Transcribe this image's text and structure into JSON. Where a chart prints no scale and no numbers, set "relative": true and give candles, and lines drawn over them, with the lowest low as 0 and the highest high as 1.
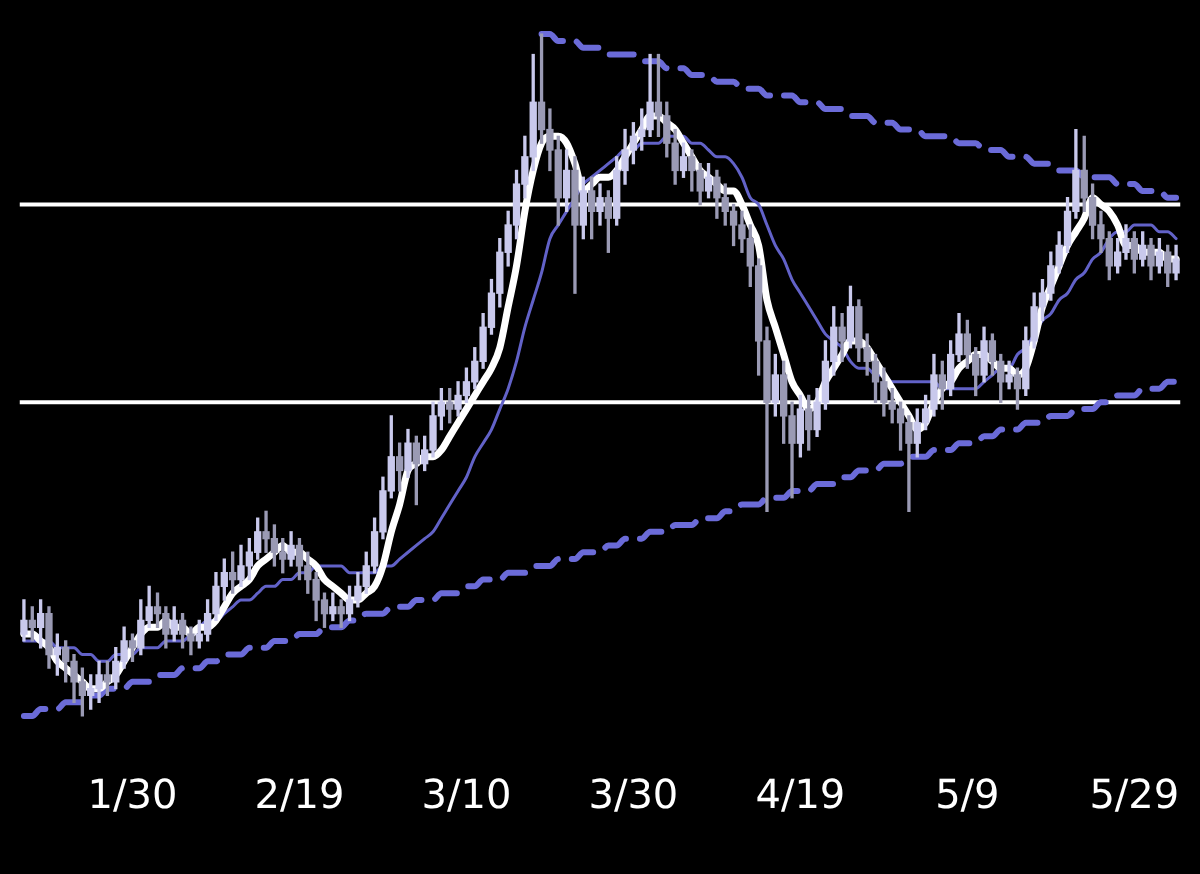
{
  "chart_data": {
    "type": "candlestick",
    "relative": true,
    "colors": [
      "#c9c9ec",
      "#9a9ab4",
      "#c9c9ec",
      "#9a9ab4",
      "#c9c9ec",
      "#9a9ab4",
      "#9a9ab4",
      "#9a9ab4",
      "#c9c9ec",
      "#c9c9ec",
      "#9a9ab4",
      "#c9c9ec",
      "#c9c9ec",
      "#9a9ab4",
      "#c9c9ec",
      "#c9c9ec",
      "#9a9ab4",
      "#9a9ab4",
      "#c9c9ec",
      "#9a9ab4",
      "#9a9ab4",
      "#c9c9ec",
      "#c9c9ec",
      "#c9c9ec",
      "#c9c9ec",
      "#9a9ab4",
      "#c9c9ec",
      "#c9c9ec",
      "#c9c9ec",
      "#9a9ab4",
      "#9a9ab4",
      "#9a9ab4",
      "#c9c9ec",
      "#9a9ab4",
      "#9a9ab4",
      "#9a9ab4",
      "#9a9ab4",
      "#c9c9ec",
      "#9a9ab4",
      "#c9c9ec",
      "#c9c9ec",
      "#c9c9ec",
      "#c9c9ec",
      "#c9c9ec",
      "#c9c9ec",
      "#9a9ab4",
      "#c9c9ec",
      "#9a9ab4",
      "#c9c9ec",
      "#c9c9ec",
      "#c9c9ec",
      "#9a9ab4",
      "#c9c9ec",
      "#c9c9ec",
      "#c9c9ec",
      "#c9c9ec",
      "#c9c9ec",
      "#c9c9ec",
      "#c9c9ec",
      "#c9c9ec",
      "#c9c9ec",
      "#c9c9ec",
      "#9a9ab4",
      "#9a9ab4",
      "#9a9ab4",
      "#c9c9ec",
      "#9a9ab4",
      "#c9c9ec",
      "#9a9ab4",
      "#c9c9ec",
      "#9a9ab4",
      "#c9c9ec",
      "#c9c9ec",
      "#c9c9ec",
      "#c9c9ec",
      "#c9c9ec",
      "#9a9ab4",
      "#9a9ab4",
      "#9a9ab4",
      "#c9c9ec",
      "#9a9ab4",
      "#9a9ab4",
      "#c9c9ec",
      "#9a9ab4",
      "#9a9ab4",
      "#9a9ab4",
      "#9a9ab4",
      "#9a9ab4",
      "#9a9ab4",
      "#9a9ab4",
      "#c9c9ec",
      "#9a9ab4",
      "#9a9ab4",
      "#c9c9ec",
      "#9a9ab4",
      "#c9c9ec",
      "#c9c9ec",
      "#c9c9ec",
      "#9a9ab4",
      "#c9c9ec",
      "#9a9ab4",
      "#9a9ab4",
      "#9a9ab4",
      "#9a9ab4",
      "#9a9ab4",
      "#9a9ab4",
      "#9a9ab4",
      "#c9c9ec",
      "#c9c9ec",
      "#c9c9ec",
      "#9a9ab4",
      "#c9c9ec",
      "#c9c9ec",
      "#9a9ab4",
      "#9a9ab4",
      "#c9c9ec",
      "#9a9ab4",
      "#9a9ab4",
      "#c9c9ec",
      "#9a9ab4",
      "#c9c9ec",
      "#c9c9ec",
      "#c9c9ec",
      "#c9c9ec",
      "#c9c9ec",
      "#c9c9ec",
      "#c9c9ec",
      "#9a9ab4",
      "#9a9ab4",
      "#9a9ab4",
      "#9a9ab4",
      "#c9c9ec",
      "#c9c9ec",
      "#9a9ab4",
      "#c9c9ec",
      "#9a9ab4",
      "#c9c9ec",
      "#9a9ab4",
      "#c9c9ec"
    ],
    "categories": [
      null,
      null,
      null,
      null,
      null,
      null,
      null,
      null,
      null,
      null,
      null,
      null,
      null,
      "1/30",
      null,
      null,
      null,
      null,
      null,
      null,
      null,
      null,
      null,
      null,
      null,
      null,
      null,
      null,
      null,
      null,
      null,
      null,
      null,
      "2/19",
      null,
      null,
      null,
      null,
      null,
      null,
      null,
      null,
      null,
      null,
      null,
      null,
      null,
      null,
      null,
      null,
      null,
      null,
      null,
      "3/10",
      null,
      null,
      null,
      null,
      null,
      null,
      null,
      null,
      null,
      null,
      null,
      null,
      null,
      null,
      null,
      null,
      null,
      null,
      null,
      "3/30",
      null,
      null,
      null,
      null,
      null,
      null,
      null,
      null,
      null,
      null,
      null,
      null,
      null,
      null,
      null,
      null,
      null,
      null,
      null,
      "4/19",
      null,
      null,
      null,
      null,
      null,
      null,
      null,
      null,
      null,
      null,
      null,
      null,
      null,
      null,
      null,
      null,
      null,
      null,
      null,
      "5/9",
      null,
      null,
      null,
      null,
      null,
      null,
      null,
      null,
      null,
      null,
      null,
      null,
      null,
      null,
      null,
      null,
      null,
      null,
      null,
      "5/29",
      null,
      null,
      null,
      null,
      null
    ],
    "ohlc": [
      [
        0.12,
        0.17,
        0.11,
        0.14
      ],
      [
        0.14,
        0.16,
        0.11,
        0.13
      ],
      [
        0.13,
        0.17,
        0.1,
        0.15
      ],
      [
        0.15,
        0.16,
        0.07,
        0.09
      ],
      [
        0.09,
        0.12,
        0.06,
        0.1
      ],
      [
        0.1,
        0.11,
        0.05,
        0.08
      ],
      [
        0.08,
        0.09,
        0.02,
        0.05
      ],
      [
        0.05,
        0.07,
        0.0,
        0.03
      ],
      [
        0.03,
        0.06,
        0.01,
        0.04
      ],
      [
        0.04,
        0.08,
        0.02,
        0.06
      ],
      [
        0.06,
        0.08,
        0.03,
        0.05
      ],
      [
        0.05,
        0.1,
        0.04,
        0.08
      ],
      [
        0.08,
        0.13,
        0.07,
        0.11
      ],
      [
        0.11,
        0.12,
        0.08,
        0.1
      ],
      [
        0.1,
        0.17,
        0.09,
        0.14
      ],
      [
        0.14,
        0.19,
        0.13,
        0.16
      ],
      [
        0.16,
        0.18,
        0.13,
        0.15
      ],
      [
        0.15,
        0.16,
        0.1,
        0.12
      ],
      [
        0.12,
        0.16,
        0.11,
        0.14
      ],
      [
        0.14,
        0.15,
        0.1,
        0.12
      ],
      [
        0.12,
        0.13,
        0.09,
        0.11
      ],
      [
        0.11,
        0.14,
        0.1,
        0.12
      ],
      [
        0.12,
        0.17,
        0.11,
        0.15
      ],
      [
        0.15,
        0.21,
        0.14,
        0.19
      ],
      [
        0.19,
        0.23,
        0.17,
        0.21
      ],
      [
        0.21,
        0.24,
        0.18,
        0.2
      ],
      [
        0.2,
        0.25,
        0.19,
        0.22
      ],
      [
        0.22,
        0.26,
        0.2,
        0.24
      ],
      [
        0.24,
        0.29,
        0.23,
        0.27
      ],
      [
        0.27,
        0.3,
        0.24,
        0.26
      ],
      [
        0.26,
        0.28,
        0.22,
        0.24
      ],
      [
        0.24,
        0.26,
        0.21,
        0.23
      ],
      [
        0.23,
        0.27,
        0.22,
        0.25
      ],
      [
        0.25,
        0.26,
        0.2,
        0.22
      ],
      [
        0.22,
        0.24,
        0.18,
        0.2
      ],
      [
        0.2,
        0.21,
        0.14,
        0.17
      ],
      [
        0.17,
        0.18,
        0.13,
        0.15
      ],
      [
        0.15,
        0.18,
        0.14,
        0.16
      ],
      [
        0.16,
        0.17,
        0.13,
        0.15
      ],
      [
        0.15,
        0.19,
        0.14,
        0.17
      ],
      [
        0.17,
        0.21,
        0.16,
        0.19
      ],
      [
        0.19,
        0.24,
        0.18,
        0.22
      ],
      [
        0.22,
        0.29,
        0.21,
        0.27
      ],
      [
        0.27,
        0.35,
        0.26,
        0.33
      ],
      [
        0.33,
        0.44,
        0.32,
        0.38
      ],
      [
        0.38,
        0.4,
        0.33,
        0.36
      ],
      [
        0.36,
        0.42,
        0.35,
        0.4
      ],
      [
        0.4,
        0.41,
        0.31,
        0.37
      ],
      [
        0.37,
        0.41,
        0.36,
        0.39
      ],
      [
        0.39,
        0.46,
        0.38,
        0.44
      ],
      [
        0.44,
        0.48,
        0.42,
        0.46
      ],
      [
        0.46,
        0.48,
        0.43,
        0.45
      ],
      [
        0.45,
        0.49,
        0.44,
        0.47
      ],
      [
        0.47,
        0.51,
        0.46,
        0.49
      ],
      [
        0.49,
        0.54,
        0.48,
        0.52
      ],
      [
        0.52,
        0.59,
        0.51,
        0.57
      ],
      [
        0.57,
        0.64,
        0.56,
        0.62
      ],
      [
        0.62,
        0.7,
        0.6,
        0.68
      ],
      [
        0.68,
        0.74,
        0.66,
        0.72
      ],
      [
        0.72,
        0.8,
        0.7,
        0.78
      ],
      [
        0.78,
        0.85,
        0.76,
        0.82
      ],
      [
        0.82,
        0.97,
        0.8,
        0.9
      ],
      [
        0.9,
        1.0,
        0.84,
        0.86
      ],
      [
        0.86,
        0.89,
        0.8,
        0.83
      ],
      [
        0.83,
        0.85,
        0.72,
        0.76
      ],
      [
        0.76,
        0.83,
        0.74,
        0.8
      ],
      [
        0.8,
        0.82,
        0.62,
        0.72
      ],
      [
        0.72,
        0.79,
        0.7,
        0.77
      ],
      [
        0.77,
        0.79,
        0.7,
        0.74
      ],
      [
        0.74,
        0.78,
        0.72,
        0.76
      ],
      [
        0.76,
        0.77,
        0.68,
        0.73
      ],
      [
        0.73,
        0.82,
        0.72,
        0.8
      ],
      [
        0.8,
        0.86,
        0.78,
        0.83
      ],
      [
        0.83,
        0.87,
        0.81,
        0.85
      ],
      [
        0.85,
        0.89,
        0.83,
        0.86
      ],
      [
        0.86,
        0.97,
        0.85,
        0.9
      ],
      [
        0.9,
        0.97,
        0.85,
        0.88
      ],
      [
        0.88,
        0.9,
        0.82,
        0.84
      ],
      [
        0.84,
        0.86,
        0.78,
        0.8
      ],
      [
        0.8,
        0.84,
        0.79,
        0.82
      ],
      [
        0.82,
        0.83,
        0.77,
        0.8
      ],
      [
        0.8,
        0.81,
        0.75,
        0.77
      ],
      [
        0.77,
        0.81,
        0.76,
        0.79
      ],
      [
        0.79,
        0.8,
        0.73,
        0.76
      ],
      [
        0.76,
        0.78,
        0.72,
        0.74
      ],
      [
        0.74,
        0.75,
        0.69,
        0.72
      ],
      [
        0.72,
        0.74,
        0.68,
        0.7
      ],
      [
        0.7,
        0.72,
        0.63,
        0.66
      ],
      [
        0.66,
        0.67,
        0.5,
        0.55
      ],
      [
        0.55,
        0.57,
        0.3,
        0.46
      ],
      [
        0.46,
        0.53,
        0.44,
        0.5
      ],
      [
        0.5,
        0.52,
        0.4,
        0.44
      ],
      [
        0.44,
        0.46,
        0.32,
        0.4
      ],
      [
        0.4,
        0.47,
        0.38,
        0.45
      ],
      [
        0.45,
        0.47,
        0.39,
        0.42
      ],
      [
        0.42,
        0.48,
        0.41,
        0.46
      ],
      [
        0.46,
        0.55,
        0.45,
        0.52
      ],
      [
        0.52,
        0.6,
        0.5,
        0.57
      ],
      [
        0.57,
        0.59,
        0.52,
        0.55
      ],
      [
        0.55,
        0.63,
        0.54,
        0.6
      ],
      [
        0.6,
        0.61,
        0.52,
        0.54
      ],
      [
        0.54,
        0.56,
        0.5,
        0.52
      ],
      [
        0.52,
        0.53,
        0.46,
        0.49
      ],
      [
        0.49,
        0.51,
        0.44,
        0.46
      ],
      [
        0.46,
        0.48,
        0.43,
        0.45
      ],
      [
        0.45,
        0.46,
        0.39,
        0.43
      ],
      [
        0.43,
        0.44,
        0.3,
        0.4
      ],
      [
        0.4,
        0.45,
        0.38,
        0.43
      ],
      [
        0.43,
        0.47,
        0.42,
        0.45
      ],
      [
        0.45,
        0.53,
        0.44,
        0.5
      ],
      [
        0.5,
        0.52,
        0.45,
        0.48
      ],
      [
        0.48,
        0.55,
        0.47,
        0.53
      ],
      [
        0.53,
        0.59,
        0.52,
        0.56
      ],
      [
        0.56,
        0.58,
        0.51,
        0.53
      ],
      [
        0.53,
        0.54,
        0.47,
        0.5
      ],
      [
        0.5,
        0.57,
        0.49,
        0.55
      ],
      [
        0.55,
        0.56,
        0.5,
        0.52
      ],
      [
        0.52,
        0.53,
        0.46,
        0.49
      ],
      [
        0.49,
        0.52,
        0.48,
        0.5
      ],
      [
        0.5,
        0.51,
        0.45,
        0.48
      ],
      [
        0.48,
        0.57,
        0.47,
        0.55
      ],
      [
        0.55,
        0.62,
        0.54,
        0.6
      ],
      [
        0.6,
        0.64,
        0.58,
        0.62
      ],
      [
        0.62,
        0.68,
        0.61,
        0.66
      ],
      [
        0.66,
        0.71,
        0.65,
        0.69
      ],
      [
        0.69,
        0.76,
        0.68,
        0.74
      ],
      [
        0.74,
        0.86,
        0.73,
        0.8
      ],
      [
        0.8,
        0.85,
        0.74,
        0.76
      ],
      [
        0.76,
        0.78,
        0.7,
        0.72
      ],
      [
        0.72,
        0.74,
        0.68,
        0.7
      ],
      [
        0.7,
        0.71,
        0.64,
        0.66
      ],
      [
        0.66,
        0.7,
        0.65,
        0.68
      ],
      [
        0.68,
        0.72,
        0.67,
        0.7
      ],
      [
        0.7,
        0.71,
        0.65,
        0.67
      ],
      [
        0.67,
        0.71,
        0.66,
        0.69
      ],
      [
        0.69,
        0.7,
        0.64,
        0.66
      ],
      [
        0.66,
        0.7,
        0.65,
        0.68
      ],
      [
        0.68,
        0.69,
        0.63,
        0.65
      ],
      [
        0.65,
        0.69,
        0.64,
        0.67
      ]
    ],
    "series": [
      {
        "type": "line",
        "color": "#ffffff",
        "values": [
          0.12,
          0.12,
          0.11,
          0.1,
          0.08,
          0.07,
          0.06,
          0.05,
          0.04,
          0.04,
          0.05,
          0.06,
          0.08,
          0.1,
          0.12,
          0.13,
          0.13,
          0.14,
          0.13,
          0.13,
          0.12,
          0.13,
          0.13,
          0.14,
          0.16,
          0.18,
          0.19,
          0.2,
          0.22,
          0.23,
          0.24,
          0.25,
          0.24,
          0.24,
          0.23,
          0.22,
          0.2,
          0.19,
          0.18,
          0.17,
          0.17,
          0.18,
          0.19,
          0.22,
          0.27,
          0.31,
          0.36,
          0.37,
          0.38,
          0.38,
          0.39,
          0.41,
          0.43,
          0.45,
          0.47,
          0.49,
          0.51,
          0.54,
          0.6,
          0.66,
          0.74,
          0.8,
          0.84,
          0.85,
          0.85,
          0.84,
          0.81,
          0.77,
          0.78,
          0.79,
          0.79,
          0.8,
          0.82,
          0.84,
          0.86,
          0.88,
          0.88,
          0.87,
          0.86,
          0.84,
          0.82,
          0.8,
          0.79,
          0.78,
          0.77,
          0.77,
          0.75,
          0.72,
          0.69,
          0.61,
          0.57,
          0.53,
          0.49,
          0.47,
          0.45,
          0.46,
          0.49,
          0.51,
          0.53,
          0.55,
          0.55,
          0.54,
          0.52,
          0.5,
          0.48,
          0.46,
          0.44,
          0.42,
          0.43,
          0.46,
          0.48,
          0.49,
          0.51,
          0.52,
          0.53,
          0.53,
          0.52,
          0.51,
          0.51,
          0.5,
          0.51,
          0.55,
          0.6,
          0.63,
          0.66,
          0.69,
          0.71,
          0.73,
          0.76,
          0.75,
          0.74,
          0.72,
          0.69,
          0.69,
          0.68,
          0.68,
          0.68,
          0.67,
          0.67
        ]
      },
      {
        "type": "line",
        "color": "#6262c8",
        "values": [
          0.11,
          0.11,
          0.11,
          0.11,
          0.1,
          0.1,
          0.1,
          0.09,
          0.09,
          0.08,
          0.08,
          0.09,
          0.09,
          0.09,
          0.1,
          0.1,
          0.1,
          0.11,
          0.11,
          0.11,
          0.12,
          0.13,
          0.14,
          0.14,
          0.15,
          0.16,
          0.17,
          0.17,
          0.18,
          0.19,
          0.19,
          0.2,
          0.2,
          0.21,
          0.21,
          0.22,
          0.22,
          0.22,
          0.22,
          0.21,
          0.21,
          0.21,
          0.21,
          0.22,
          0.22,
          0.23,
          0.24,
          0.25,
          0.26,
          0.27,
          0.29,
          0.31,
          0.33,
          0.35,
          0.38,
          0.4,
          0.42,
          0.45,
          0.48,
          0.52,
          0.57,
          0.61,
          0.65,
          0.7,
          0.72,
          0.74,
          0.76,
          0.78,
          0.79,
          0.8,
          0.81,
          0.82,
          0.83,
          0.83,
          0.84,
          0.84,
          0.84,
          0.85,
          0.85,
          0.85,
          0.84,
          0.84,
          0.83,
          0.82,
          0.82,
          0.81,
          0.79,
          0.76,
          0.75,
          0.72,
          0.69,
          0.67,
          0.64,
          0.62,
          0.6,
          0.58,
          0.56,
          0.55,
          0.54,
          0.52,
          0.51,
          0.51,
          0.5,
          0.5,
          0.49,
          0.49,
          0.49,
          0.49,
          0.49,
          0.49,
          0.48,
          0.48,
          0.48,
          0.48,
          0.48,
          0.49,
          0.5,
          0.51,
          0.51,
          0.53,
          0.54,
          0.56,
          0.58,
          0.59,
          0.61,
          0.62,
          0.64,
          0.65,
          0.67,
          0.68,
          0.7,
          0.71,
          0.71,
          0.72,
          0.72,
          0.72,
          0.71,
          0.71,
          0.7
        ]
      },
      {
        "type": "line",
        "color": "#6b6bd8",
        "line_style": "dashed",
        "values": [
          null,
          null,
          null,
          null,
          null,
          null,
          null,
          null,
          null,
          null,
          null,
          null,
          null,
          null,
          null,
          null,
          null,
          null,
          null,
          null,
          null,
          null,
          null,
          null,
          null,
          null,
          null,
          null,
          null,
          null,
          null,
          null,
          null,
          null,
          null,
          null,
          null,
          null,
          null,
          null,
          null,
          null,
          null,
          null,
          null,
          null,
          null,
          null,
          null,
          null,
          null,
          null,
          null,
          null,
          null,
          null,
          null,
          null,
          null,
          null,
          null,
          null,
          1.0,
          1.0,
          0.99,
          0.99,
          0.99,
          0.98,
          0.98,
          0.98,
          0.97,
          0.97,
          0.97,
          0.97,
          0.96,
          0.96,
          0.96,
          0.95,
          0.95,
          0.95,
          0.94,
          0.94,
          0.94,
          0.93,
          0.93,
          0.93,
          0.92,
          0.92,
          0.92,
          0.91,
          0.91,
          0.91,
          0.91,
          0.9,
          0.9,
          0.9,
          0.89,
          0.89,
          0.89,
          0.88,
          0.88,
          0.88,
          0.87,
          0.87,
          0.87,
          0.86,
          0.86,
          0.86,
          0.85,
          0.85,
          0.85,
          0.85,
          0.84,
          0.84,
          0.84,
          0.83,
          0.83,
          0.83,
          0.82,
          0.82,
          0.82,
          0.81,
          0.81,
          0.81,
          0.8,
          0.8,
          0.8,
          0.79,
          0.79,
          0.79,
          0.79,
          0.78,
          0.78,
          0.78,
          0.77,
          0.77,
          0.77,
          0.76,
          0.76
        ]
      },
      {
        "type": "line",
        "color": "#6b6bd8",
        "line_style": "dashed",
        "values": [
          0.0,
          0.0,
          0.01,
          0.01,
          0.01,
          0.02,
          0.02,
          0.02,
          0.03,
          0.03,
          0.04,
          0.04,
          0.04,
          0.05,
          0.05,
          0.05,
          0.06,
          0.06,
          0.06,
          0.07,
          0.07,
          0.07,
          0.08,
          0.08,
          0.09,
          0.09,
          0.09,
          0.1,
          0.1,
          0.1,
          0.11,
          0.11,
          0.11,
          0.12,
          0.12,
          0.12,
          0.13,
          0.13,
          0.13,
          0.14,
          0.14,
          0.15,
          0.15,
          0.15,
          0.16,
          0.16,
          0.16,
          0.17,
          0.17,
          0.17,
          0.18,
          0.18,
          0.18,
          0.19,
          0.19,
          0.2,
          0.2,
          0.2,
          0.21,
          0.21,
          0.21,
          0.22,
          0.22,
          0.22,
          0.23,
          0.23,
          0.23,
          0.24,
          0.24,
          0.24,
          0.25,
          0.25,
          0.26,
          0.26,
          0.26,
          0.27,
          0.27,
          0.27,
          0.28,
          0.28,
          0.28,
          0.29,
          0.29,
          0.29,
          0.3,
          0.3,
          0.31,
          0.31,
          0.31,
          0.32,
          0.32,
          0.32,
          0.33,
          0.33,
          0.33,
          0.34,
          0.34,
          0.34,
          0.35,
          0.35,
          0.36,
          0.36,
          0.36,
          0.37,
          0.37,
          0.37,
          0.38,
          0.38,
          0.38,
          0.39,
          0.39,
          0.39,
          0.4,
          0.4,
          0.4,
          0.41,
          0.41,
          0.42,
          0.42,
          0.42,
          0.43,
          0.43,
          0.43,
          0.44,
          0.44,
          0.44,
          0.45,
          0.45,
          0.45,
          0.46,
          0.46,
          0.47,
          0.47,
          0.47,
          0.48,
          0.48,
          0.48,
          0.49,
          0.49
        ]
      }
    ],
    "ref_lines": [
      {
        "axis": "y",
        "value": 0.75,
        "color": "#ffffff"
      },
      {
        "axis": "y",
        "value": 0.46,
        "color": "#ffffff"
      }
    ]
  }
}
